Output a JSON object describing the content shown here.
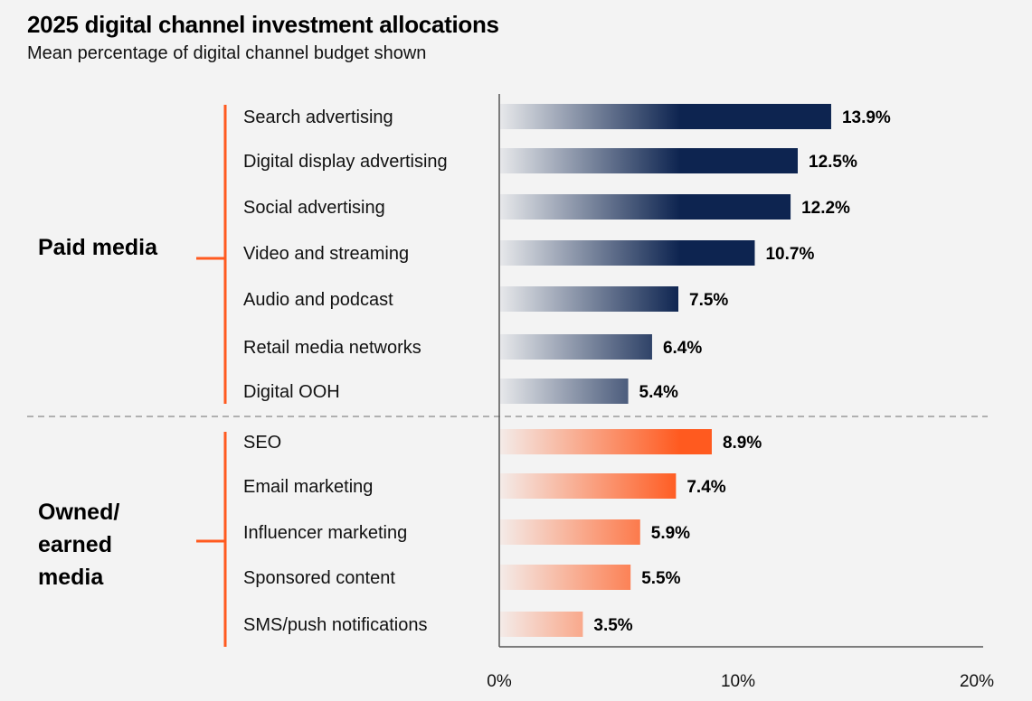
{
  "colors": {
    "paid": "#0d2450",
    "owned": "#ff5a1f",
    "bracket": "#ff5a1f",
    "axis": "#555555",
    "divider": "#b0b0b0",
    "background": "#f3f3f3"
  },
  "chart_data": {
    "type": "bar",
    "orientation": "horizontal",
    "title": "2025 digital channel investment allocations",
    "subtitle": "Mean percentage of digital channel budget shown",
    "xlim": [
      0,
      20
    ],
    "xticks": [
      0,
      10,
      20
    ],
    "tick_labels": [
      "0%",
      "10%",
      "20%"
    ],
    "value_suffix": "%",
    "groups": [
      {
        "name": "paid",
        "label_lines": [
          "Paid media"
        ],
        "categories": [
          "Search advertising",
          "Digital display advertising",
          "Social advertising",
          "Video and streaming",
          "Audio and podcast",
          "Retail media networks",
          "Digital OOH"
        ],
        "values": [
          13.9,
          12.5,
          12.2,
          10.7,
          7.5,
          6.4,
          5.4
        ]
      },
      {
        "name": "owned",
        "label_lines": [
          "Owned/",
          "earned",
          "media"
        ],
        "categories": [
          "SEO",
          "Email marketing",
          "Influencer marketing",
          "Sponsored content",
          "SMS/push notifications"
        ],
        "values": [
          8.9,
          7.4,
          5.9,
          5.5,
          3.5
        ]
      }
    ]
  }
}
